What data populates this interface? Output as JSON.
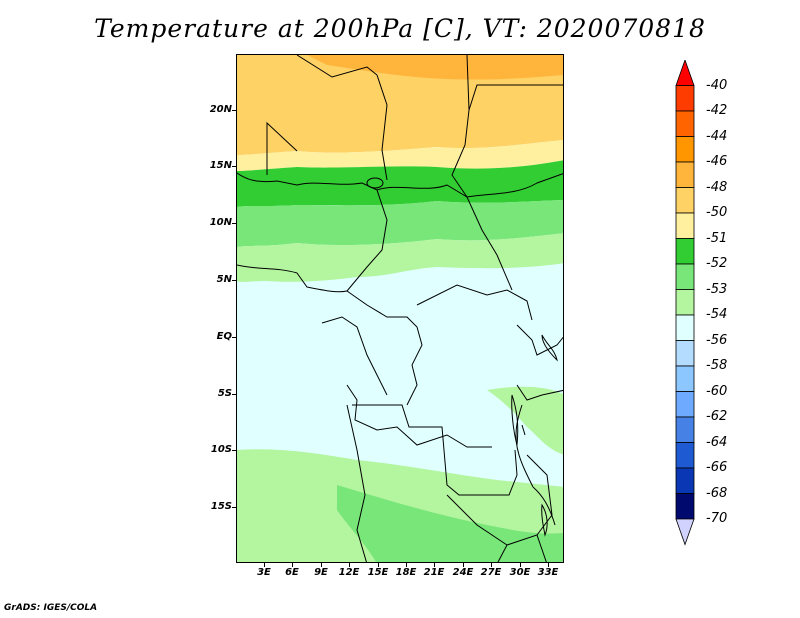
{
  "title": "Temperature at 200hPa [C], VT: 2020070818",
  "footer": "GrADS: IGES/COLA",
  "map": {
    "region": "Central Africa",
    "lon_range": [
      0,
      34
    ],
    "lat_range": [
      -20,
      25
    ],
    "lat_labels": [
      "20N",
      "15N",
      "10N",
      "5N",
      "EQ",
      "5S",
      "10S",
      "15S"
    ],
    "lon_labels": [
      "3E",
      "6E",
      "9E",
      "12E",
      "15E",
      "18E",
      "21E",
      "24E",
      "27E",
      "30E",
      "33E"
    ]
  },
  "colorbar": {
    "levels": [
      "-40",
      "-42",
      "-44",
      "-46",
      "-48",
      "-50",
      "-51",
      "-52",
      "-53",
      "-54",
      "-56",
      "-58",
      "-60",
      "-62",
      "-64",
      "-66",
      "-68",
      "-70"
    ],
    "colors": [
      "#ff0000",
      "#ff3c00",
      "#ff6400",
      "#ff9600",
      "#ffb43c",
      "#ffd266",
      "#fff0a0",
      "#32cd32",
      "#78e678",
      "#b4f5a0",
      "#e0ffff",
      "#b4dcff",
      "#8cc8ff",
      "#6eaaff",
      "#4682e6",
      "#1e5ad2",
      "#0a37b4",
      "#000a6e",
      "#d2d2ff"
    ]
  },
  "colors": {
    "band_orange": "#ffb43c",
    "band_gold": "#ffd266",
    "band_pale_yellow": "#fff0a0",
    "band_green": "#32cd32",
    "band_mid_green": "#78e678",
    "band_light_green": "#b4f5a0",
    "band_cyan": "#e0ffff"
  }
}
